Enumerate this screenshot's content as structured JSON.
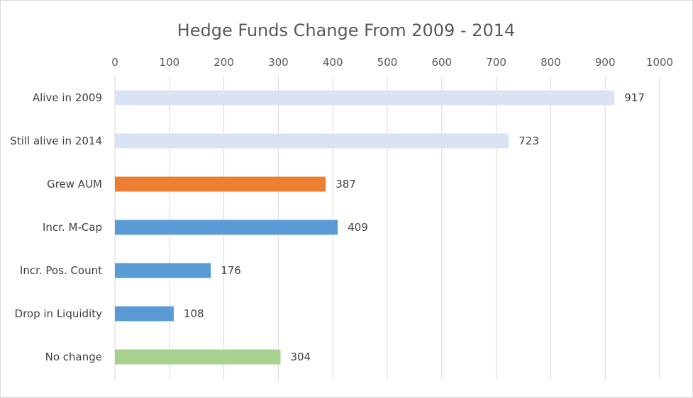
{
  "chart_data": {
    "type": "bar",
    "orientation": "horizontal",
    "title": "Hedge Funds Change From 2009 - 2014",
    "xlim": [
      0,
      1000
    ],
    "ticks": [
      0,
      100,
      200,
      300,
      400,
      500,
      600,
      700,
      800,
      900,
      1000
    ],
    "tick_labels": [
      "0",
      "100",
      "200",
      "300",
      "400",
      "500",
      "600",
      "700",
      "800",
      "900",
      "1000"
    ],
    "grid": "vertical",
    "legend": "none",
    "categories": [
      "Alive in 2009",
      "Still alive in 2014",
      "Grew AUM",
      "Incr. M-Cap",
      "Incr. Pos. Count",
      "Drop in Liquidity",
      "No change"
    ],
    "values": [
      917,
      723,
      387,
      409,
      176,
      108,
      304
    ],
    "value_labels": [
      "917",
      "723",
      "387",
      "409",
      "176",
      "108",
      "304"
    ],
    "colors": [
      "#dae3f3",
      "#dae3f3",
      "#ed7d31",
      "#5b9bd5",
      "#5b9bd5",
      "#5b9bd5",
      "#a9d18e"
    ]
  }
}
